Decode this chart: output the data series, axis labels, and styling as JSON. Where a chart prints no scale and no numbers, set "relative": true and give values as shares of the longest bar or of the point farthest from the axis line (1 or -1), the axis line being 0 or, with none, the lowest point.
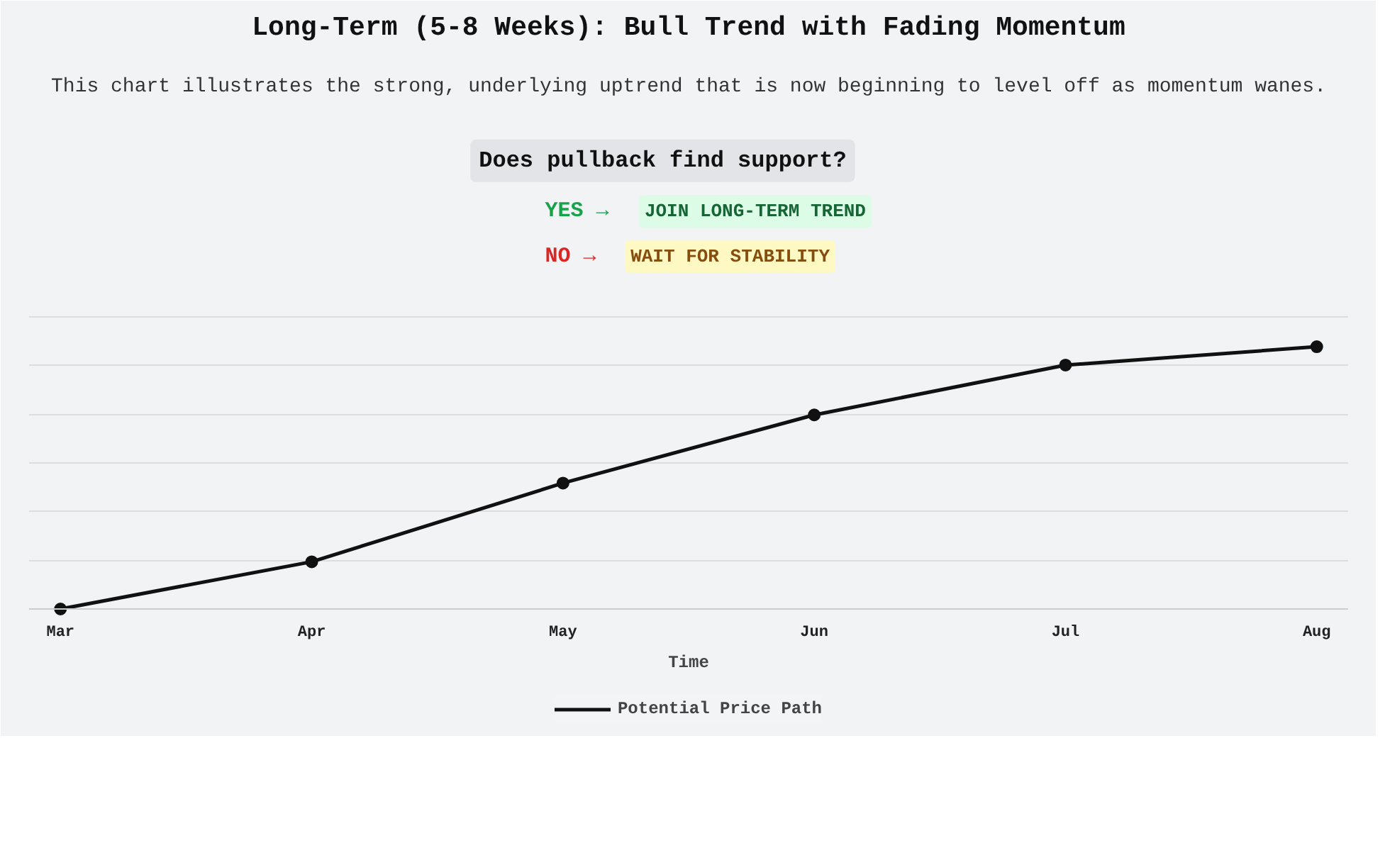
{
  "chart_data": {
    "type": "line",
    "title": "Long-Term (5-8 Weeks): Bull Trend with Fading Momentum",
    "subtitle": "This chart illustrates the strong, underlying uptrend that is now beginning to level off as momentum wanes.",
    "annotations": [
      "Does pullback find support?",
      "YES →",
      "JOIN LONG-TERM TREND",
      "NO →",
      "WAIT FOR STABILITY"
    ],
    "xlabel": "Time",
    "categories": [
      "Mar",
      "Apr",
      "May",
      "Jun",
      "Jul",
      "Aug"
    ],
    "series": [
      {
        "name": "Potential Price Path",
        "color": "#111111",
        "values": [
          0,
          0.18,
          0.48,
          0.74,
          0.93,
          1
        ]
      }
    ],
    "relative": true,
    "grid": "y",
    "legend": "bottom",
    "marker": "circle",
    "line_style": "solid"
  }
}
